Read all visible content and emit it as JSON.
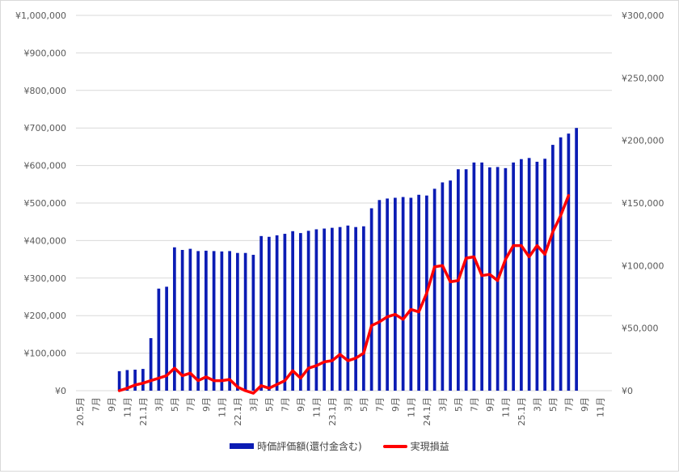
{
  "chart_data": {
    "type": "bar",
    "title": "",
    "xlabel": "",
    "ylabel": "",
    "grid": true,
    "legend_position": "bottom",
    "colors": {
      "bar": "#0b1cb4",
      "line": "#ff0000",
      "grid": "#d9d9d9",
      "text": "#595959"
    },
    "y_left": {
      "min": 0,
      "max": 1000000,
      "step": 100000,
      "tick_labels": [
        "¥0",
        "¥100,000",
        "¥200,000",
        "¥300,000",
        "¥400,000",
        "¥500,000",
        "¥600,000",
        "¥700,000",
        "¥800,000",
        "¥900,000",
        "¥1,000,000"
      ]
    },
    "y_right": {
      "min": 0,
      "max": 300000,
      "step": 50000,
      "tick_labels": [
        "¥0",
        "¥50,000",
        "¥100,000",
        "¥150,000",
        "¥200,000",
        "¥250,000",
        "¥300,000"
      ]
    },
    "x_tick_labels": [
      "20.5月",
      "7月",
      "9月",
      "11月",
      "21.1月",
      "3月",
      "5月",
      "7月",
      "9月",
      "11月",
      "22.1月",
      "3月",
      "5月",
      "7月",
      "9月",
      "11月",
      "23.1月",
      "3月",
      "5月",
      "7月",
      "9月",
      "11月",
      "24.1月",
      "3月",
      "5月",
      "7月",
      "9月",
      "11月",
      "25.1月",
      "3月",
      "5月",
      "7月",
      "9月",
      "11月"
    ],
    "categories": [
      "2020-05",
      "2020-06",
      "2020-07",
      "2020-08",
      "2020-09",
      "2020-10",
      "2020-11",
      "2020-12",
      "2021-01",
      "2021-02",
      "2021-03",
      "2021-04",
      "2021-05",
      "2021-06",
      "2021-07",
      "2021-08",
      "2021-09",
      "2021-10",
      "2021-11",
      "2021-12",
      "2022-01",
      "2022-02",
      "2022-03",
      "2022-04",
      "2022-05",
      "2022-06",
      "2022-07",
      "2022-08",
      "2022-09",
      "2022-10",
      "2022-11",
      "2022-12",
      "2023-01",
      "2023-02",
      "2023-03",
      "2023-04",
      "2023-05",
      "2023-06",
      "2023-07",
      "2023-08",
      "2023-09",
      "2023-10",
      "2023-11",
      "2023-12",
      "2024-01",
      "2024-02",
      "2024-03",
      "2024-04",
      "2024-05",
      "2024-06",
      "2024-07",
      "2024-08",
      "2024-09",
      "2024-10",
      "2024-11",
      "2024-12",
      "2025-01",
      "2025-02",
      "2025-03",
      "2025-04",
      "2025-05",
      "2025-06",
      "2025-07",
      "2025-08",
      "2025-09",
      "2025-10",
      "2025-11",
      "2025-12"
    ],
    "series": [
      {
        "name": "時価評価額(還付金含む)",
        "axis": "left",
        "type": "bar",
        "values": [
          null,
          null,
          null,
          null,
          null,
          52000,
          55000,
          56000,
          58000,
          140000,
          272000,
          277000,
          382000,
          375000,
          378000,
          372000,
          373000,
          372000,
          371000,
          372000,
          367000,
          367000,
          362000,
          412000,
          410000,
          414000,
          418000,
          425000,
          420000,
          426000,
          430000,
          432000,
          434000,
          436000,
          440000,
          436000,
          438000,
          486000,
          508000,
          512000,
          514000,
          516000,
          514000,
          522000,
          520000,
          538000,
          555000,
          560000,
          590000,
          590000,
          608000,
          608000,
          595000,
          596000,
          593000,
          608000,
          617000,
          620000,
          610000,
          618000,
          655000,
          675000,
          685000,
          700000,
          null,
          null,
          null,
          null
        ]
      },
      {
        "name": "実現損益",
        "axis": "right",
        "type": "line",
        "values": [
          null,
          null,
          null,
          null,
          null,
          0,
          2000,
          4500,
          6000,
          8000,
          10000,
          12000,
          18000,
          12000,
          14000,
          8000,
          11000,
          8000,
          8000,
          9000,
          3000,
          0,
          -2000,
          4000,
          2000,
          5000,
          8000,
          16000,
          10000,
          18000,
          20000,
          23000,
          24000,
          29000,
          24000,
          26000,
          30000,
          52000,
          55000,
          59000,
          61000,
          57000,
          65000,
          63000,
          78000,
          99000,
          100000,
          87000,
          88000,
          106000,
          107000,
          92000,
          93000,
          88000,
          105000,
          116000,
          116000,
          107000,
          116000,
          109000,
          127000,
          140000,
          156000,
          null,
          null,
          null,
          null,
          null
        ]
      }
    ]
  }
}
